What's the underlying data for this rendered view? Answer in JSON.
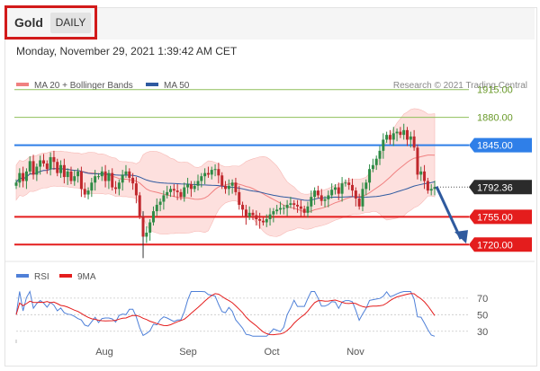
{
  "header": {
    "instrument": "Gold",
    "timeframe": "DAILY",
    "timestamp": "Monday, November 29, 2021 1:39:42 AM CET"
  },
  "main_chart": {
    "legend": [
      {
        "label": "MA 20 + Bollinger Bands",
        "color": "#f08080"
      },
      {
        "label": "MA 50",
        "color": "#2f5aa0"
      }
    ],
    "copyright": "Research © 2021 Trading Central",
    "levels": [
      {
        "value": 1915,
        "label": "1915.00",
        "kind": "target",
        "color": "#8fbf5a"
      },
      {
        "value": 1880,
        "label": "1880.00",
        "kind": "target",
        "color": "#8fbf5a"
      },
      {
        "value": 1845,
        "label": "1845.00",
        "kind": "pivot",
        "color": "#2f7fe8"
      },
      {
        "value": 1755,
        "label": "1755.00",
        "kind": "support",
        "color": "#e41d1d"
      },
      {
        "value": 1720,
        "label": "1720.00",
        "kind": "support",
        "color": "#e41d1d"
      }
    ],
    "last_price": {
      "value": 1792.36,
      "label": "1792.36"
    }
  },
  "rsi_panel": {
    "legend": [
      {
        "label": "RSI",
        "color": "#4f80d8"
      },
      {
        "label": "9MA",
        "color": "#e41d1d"
      }
    ],
    "levels": [
      "70",
      "50",
      "30"
    ]
  },
  "x_axis": {
    "labels": [
      "Aug",
      "Sep",
      "Oct",
      "Nov"
    ]
  },
  "chart_data": {
    "type": "candlestick",
    "series": [
      {
        "name": "MA 20 + Bollinger Bands"
      },
      {
        "name": "MA 50"
      },
      {
        "name": "RSI"
      },
      {
        "name": "9MA"
      }
    ],
    "close_path": [
      1798,
      1810,
      1800,
      1812,
      1825,
      1808,
      1818,
      1826,
      1822,
      1815,
      1830,
      1824,
      1810,
      1820,
      1805,
      1812,
      1800,
      1806,
      1812,
      1790,
      1783,
      1788,
      1798,
      1806,
      1806,
      1812,
      1800,
      1810,
      1792,
      1790,
      1798,
      1808,
      1812,
      1804,
      1797,
      1782,
      1756,
      1730,
      1735,
      1748,
      1762,
      1770,
      1774,
      1782,
      1786,
      1790,
      1788,
      1786,
      1780,
      1792,
      1796,
      1790,
      1794,
      1800,
      1806,
      1810,
      1808,
      1814,
      1815,
      1807,
      1794,
      1790,
      1794,
      1798,
      1786,
      1770,
      1764,
      1755,
      1760,
      1757,
      1752,
      1750,
      1748,
      1752,
      1758,
      1762,
      1764,
      1766,
      1766,
      1770,
      1772,
      1770,
      1768,
      1765,
      1760,
      1768,
      1780,
      1788,
      1782,
      1775,
      1777,
      1782,
      1789,
      1792,
      1784,
      1797,
      1798,
      1795,
      1788,
      1778,
      1768,
      1790,
      1798,
      1815,
      1820,
      1828,
      1838,
      1852,
      1858,
      1852,
      1860,
      1862,
      1858,
      1864,
      1852,
      1856,
      1842,
      1808,
      1812,
      1800,
      1788,
      1790,
      1792.36
    ],
    "price_range": [
      1700,
      1935
    ],
    "rsi_range": [
      20,
      85
    ],
    "rsi_levels": [
      70,
      50,
      30
    ]
  }
}
